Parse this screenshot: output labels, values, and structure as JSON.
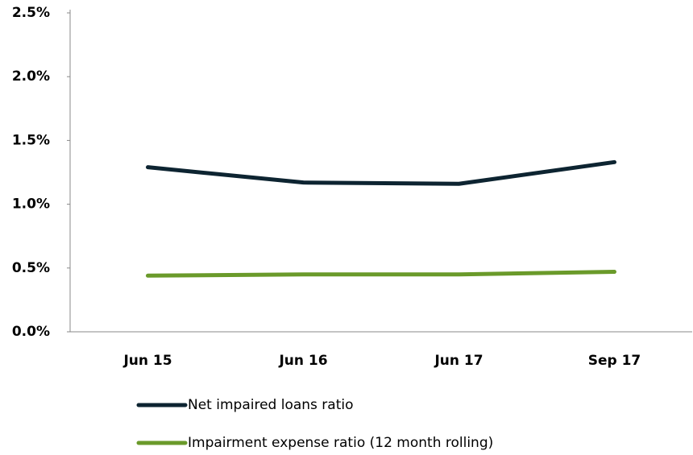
{
  "chart_data": {
    "type": "line",
    "categories": [
      "Jun 15",
      "Jun 16",
      "Jun 17",
      "Sep 17"
    ],
    "series": [
      {
        "name": "Net impaired loans ratio",
        "color": "#0d2431",
        "values": [
          1.29,
          1.17,
          1.16,
          1.33
        ]
      },
      {
        "name": "Impairment expense ratio (12 month rolling)",
        "color": "#6a9a2a",
        "values": [
          0.44,
          0.45,
          0.45,
          0.47
        ]
      }
    ],
    "ylim": [
      0,
      2.5
    ],
    "yticks": [
      {
        "value": 0,
        "label": "0.0%"
      },
      {
        "value": 0.5,
        "label": "0.5%"
      },
      {
        "value": 1.0,
        "label": "1.0%"
      },
      {
        "value": 1.5,
        "label": "1.5%"
      },
      {
        "value": 2.0,
        "label": "2.0%"
      },
      {
        "value": 2.5,
        "label": "2.5%"
      }
    ],
    "grid": false,
    "legend": "bottom"
  }
}
